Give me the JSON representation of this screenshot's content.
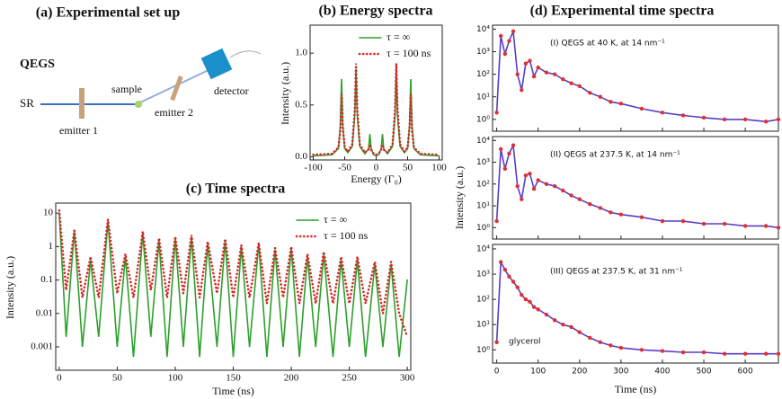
{
  "diagram": {
    "title": "(a) Experimental set up",
    "scheme": "QEGS",
    "source": "SR",
    "emitter_1": "emitter 1",
    "sample": "sample",
    "emitter_2": "emitter 2",
    "detector": "detector"
  },
  "chart_data": [
    {
      "type": "line",
      "title": "(b) Energy spectra",
      "xlabel": "Energy (Γ₀)",
      "ylabel": "Intensity (a.u.)",
      "x": [
        -100,
        -70,
        -60,
        -57,
        -55,
        -53,
        -50,
        -45,
        -38,
        -34,
        -32,
        -30,
        -26,
        -18,
        -12,
        -10,
        -8,
        -4,
        0,
        4,
        8,
        10,
        12,
        18,
        26,
        30,
        32,
        34,
        38,
        45,
        50,
        53,
        55,
        57,
        60,
        70,
        100
      ],
      "series": [
        {
          "name": "τ = ∞",
          "color": "#2ca02c",
          "style": "solid",
          "values": [
            0.01,
            0.02,
            0.08,
            0.3,
            0.75,
            0.3,
            0.08,
            0.04,
            0.1,
            0.4,
            0.85,
            0.4,
            0.1,
            0.03,
            0.08,
            0.22,
            0.08,
            0.02,
            0.01,
            0.02,
            0.08,
            0.22,
            0.08,
            0.03,
            0.1,
            0.4,
            0.85,
            0.4,
            0.1,
            0.04,
            0.08,
            0.3,
            0.75,
            0.3,
            0.08,
            0.02,
            0.01
          ]
        },
        {
          "name": "τ = 100 ns",
          "color": "#d62728",
          "style": "dotted",
          "values": [
            0.02,
            0.03,
            0.09,
            0.25,
            0.6,
            0.28,
            0.09,
            0.05,
            0.12,
            0.45,
            0.9,
            0.45,
            0.12,
            0.04,
            0.07,
            0.12,
            0.07,
            0.03,
            0.02,
            0.03,
            0.07,
            0.12,
            0.07,
            0.04,
            0.12,
            0.45,
            0.9,
            0.45,
            0.12,
            0.05,
            0.09,
            0.28,
            0.6,
            0.25,
            0.09,
            0.03,
            0.02
          ]
        }
      ],
      "xlim": [
        -105,
        105
      ],
      "ylim": [
        -0.03,
        1.27
      ],
      "xticks": [
        -100,
        -50,
        0,
        50,
        100
      ],
      "yticks": [
        {
          "value": 0,
          "label": "0.0"
        },
        0.5,
        {
          "value": 1,
          "label": "1.0"
        }
      ],
      "legend": "upper right"
    },
    {
      "type": "line",
      "title": "(c) Time spectra",
      "xlabel": "Time (ns)",
      "ylabel": "Intensity (a.u.)",
      "log_y": true,
      "x": [
        0,
        6,
        13,
        20,
        27,
        34,
        42,
        50,
        57,
        64,
        72,
        79,
        86,
        93,
        100,
        107,
        114,
        121,
        128,
        136,
        143,
        150,
        157,
        164,
        172,
        179,
        186,
        193,
        200,
        207,
        214,
        221,
        228,
        236,
        243,
        250,
        257,
        264,
        272,
        279,
        286,
        293,
        300
      ],
      "series": [
        {
          "name": "τ = ∞",
          "color": "#2ca02c",
          "style": "solid",
          "values": [
            10,
            0.002,
            3,
            0.001,
            0.4,
            0.002,
            6,
            0.001,
            0.5,
            0.0005,
            2.5,
            0.002,
            1.5,
            0.0005,
            1.8,
            0.001,
            2,
            0.0005,
            1.2,
            0.001,
            1.5,
            0.0005,
            1,
            0.001,
            1.2,
            0.0005,
            0.8,
            0.001,
            0.9,
            0.0005,
            0.5,
            0.001,
            0.6,
            0.0005,
            0.4,
            0.001,
            0.4,
            0.0005,
            0.3,
            0.001,
            0.3,
            0.0005,
            0.1
          ]
        },
        {
          "name": "τ = 100 ns",
          "color": "#d62728",
          "style": "dotted",
          "values": [
            12,
            0.05,
            3,
            0.03,
            0.5,
            0.03,
            6.5,
            0.04,
            0.6,
            0.03,
            2.8,
            0.05,
            1.8,
            0.03,
            2,
            0.04,
            2.2,
            0.03,
            1.4,
            0.04,
            1.7,
            0.03,
            1.1,
            0.03,
            1.3,
            0.02,
            0.9,
            0.03,
            1,
            0.02,
            0.6,
            0.02,
            0.7,
            0.02,
            0.5,
            0.02,
            0.5,
            0.02,
            0.35,
            0.01,
            0.35,
            0.01,
            0.002
          ]
        }
      ],
      "xlim": [
        -3,
        303
      ],
      "ylim": [
        0.0002,
        20
      ],
      "xticks": [
        0,
        50,
        100,
        150,
        200,
        250,
        300
      ],
      "yticks": [
        0.001,
        0.01,
        0.1,
        1,
        10
      ],
      "legend": "upper right"
    },
    {
      "type": "scatter",
      "title": "(d) Experimental time spectra",
      "log_y": true,
      "annotations": [
        "(I) QEGS at 40 K, at 14 nm⁻¹"
      ],
      "x": [
        0,
        10,
        20,
        30,
        40,
        50,
        60,
        70,
        80,
        90,
        100,
        120,
        140,
        160,
        180,
        200,
        225,
        250,
        275,
        300,
        350,
        400,
        450,
        500,
        550,
        600,
        650,
        680
      ],
      "series": [
        {
          "color": "#e03030",
          "line_color": "#5a3cc8",
          "values": [
            2,
            5000,
            800,
            3000,
            8000,
            100,
            20,
            300,
            400,
            80,
            200,
            120,
            100,
            60,
            40,
            30,
            15,
            10,
            6,
            5,
            3,
            2,
            1.5,
            1.2,
            1,
            1,
            0.8,
            1
          ]
        }
      ],
      "xlim": [
        -10,
        680
      ],
      "ylim": [
        0.3,
        15000
      ],
      "xticks": [
        0,
        100,
        200,
        300,
        400,
        500,
        600
      ],
      "yticks": [
        {
          "value": 1,
          "label": "10⁰"
        },
        {
          "value": 10,
          "label": "10¹"
        },
        {
          "value": 100,
          "label": "10²"
        },
        {
          "value": 1000,
          "label": "10³"
        },
        {
          "value": 10000,
          "label": "10⁴"
        }
      ]
    },
    {
      "type": "scatter",
      "ylabel": "Intensity (a.u.)",
      "log_y": true,
      "annotations": [
        "(II) QEGS at 237.5 K, at 14 nm⁻¹"
      ],
      "x": [
        0,
        10,
        20,
        30,
        40,
        50,
        60,
        70,
        80,
        90,
        100,
        120,
        140,
        160,
        180,
        200,
        225,
        250,
        275,
        300,
        350,
        400,
        450,
        500,
        550,
        600,
        650,
        680
      ],
      "series": [
        {
          "color": "#e03030",
          "line_color": "#5a3cc8",
          "values": [
            2,
            4000,
            500,
            2500,
            6000,
            80,
            20,
            250,
            300,
            60,
            150,
            100,
            80,
            50,
            30,
            20,
            12,
            8,
            5,
            4,
            3,
            2,
            2,
            1.5,
            1.5,
            1.2,
            1.2,
            1
          ]
        }
      ],
      "xlim": [
        -10,
        680
      ],
      "ylim": [
        0.3,
        15000
      ],
      "xticks": [
        0,
        100,
        200,
        300,
        400,
        500,
        600
      ],
      "yticks": [
        {
          "value": 1,
          "label": "10⁰"
        },
        {
          "value": 10,
          "label": "10¹"
        },
        {
          "value": 100,
          "label": "10²"
        },
        {
          "value": 1000,
          "label": "10³"
        },
        {
          "value": 10000,
          "label": "10⁴"
        }
      ]
    },
    {
      "type": "scatter",
      "xlabel": "Time (ns)",
      "log_y": true,
      "annotations": [
        "(III) QEGS at 237.5 K, at 31 nm⁻¹",
        "glycerol"
      ],
      "x": [
        0,
        10,
        20,
        30,
        40,
        50,
        60,
        70,
        80,
        90,
        100,
        120,
        140,
        160,
        180,
        200,
        225,
        250,
        275,
        300,
        350,
        400,
        450,
        500,
        550,
        600,
        650,
        680
      ],
      "series": [
        {
          "color": "#e03030",
          "line_color": "#5a3cc8",
          "values": [
            2,
            3000,
            1500,
            800,
            500,
            300,
            150,
            100,
            80,
            50,
            40,
            25,
            15,
            10,
            8,
            5,
            3,
            2,
            1.5,
            1.2,
            1,
            0.9,
            0.8,
            0.8,
            0.7,
            0.7,
            0.7,
            0.7
          ]
        }
      ],
      "xlim": [
        -10,
        680
      ],
      "ylim": [
        0.3,
        15000
      ],
      "xticks": [
        0,
        100,
        200,
        300,
        400,
        500,
        600
      ],
      "yticks": [
        {
          "value": 1,
          "label": "10⁰"
        },
        {
          "value": 10,
          "label": "10¹"
        },
        {
          "value": 100,
          "label": "10²"
        },
        {
          "value": 1000,
          "label": "10³"
        },
        {
          "value": 10000,
          "label": "10⁴"
        }
      ]
    }
  ]
}
